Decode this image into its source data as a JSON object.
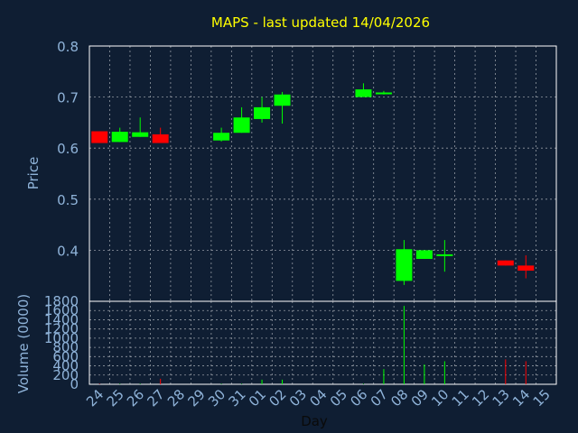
{
  "chart_data": [
    {
      "type": "candlestick",
      "title": "MAPS - last updated 14/04/2026",
      "ylabel": "Price",
      "ylim": [
        0.3,
        0.8
      ],
      "yticks": [
        "0.8",
        "0.7",
        "0.6",
        "0.5",
        "0.4"
      ],
      "grid": true,
      "categories": [
        "24",
        "25",
        "26",
        "27",
        "28",
        "29",
        "30",
        "31",
        "01",
        "02",
        "03",
        "04",
        "05",
        "06",
        "07",
        "08",
        "09",
        "10",
        "11",
        "12",
        "13",
        "14",
        "15"
      ],
      "candles": [
        {
          "x": "24",
          "open": 0.61,
          "close": 0.633,
          "high": 0.633,
          "low": 0.61,
          "color": "#ff0000"
        },
        {
          "x": "25",
          "open": 0.612,
          "close": 0.632,
          "high": 0.64,
          "low": 0.612,
          "color": "#00ff00"
        },
        {
          "x": "26",
          "open": 0.622,
          "close": 0.631,
          "high": 0.66,
          "low": 0.622,
          "color": "#00ff00"
        },
        {
          "x": "27",
          "open": 0.627,
          "close": 0.61,
          "high": 0.64,
          "low": 0.61,
          "color": "#ff0000"
        },
        {
          "x": "30",
          "open": 0.615,
          "close": 0.63,
          "high": 0.64,
          "low": 0.613,
          "color": "#00ff00"
        },
        {
          "x": "31",
          "open": 0.63,
          "close": 0.66,
          "high": 0.68,
          "low": 0.63,
          "color": "#00ff00"
        },
        {
          "x": "01",
          "open": 0.657,
          "close": 0.68,
          "high": 0.7,
          "low": 0.65,
          "color": "#00ff00"
        },
        {
          "x": "02",
          "open": 0.683,
          "close": 0.705,
          "high": 0.71,
          "low": 0.648,
          "color": "#00ff00"
        },
        {
          "x": "06",
          "open": 0.7,
          "close": 0.715,
          "high": 0.727,
          "low": 0.7,
          "color": "#00ff00"
        },
        {
          "x": "07",
          "open": 0.707,
          "close": 0.709,
          "high": 0.712,
          "low": 0.705,
          "color": "#00ff00"
        },
        {
          "x": "08",
          "open": 0.34,
          "close": 0.402,
          "high": 0.42,
          "low": 0.332,
          "color": "#00ff00"
        },
        {
          "x": "09",
          "open": 0.383,
          "close": 0.4,
          "high": 0.4,
          "low": 0.383,
          "color": "#00ff00"
        },
        {
          "x": "10",
          "open": 0.39,
          "close": 0.392,
          "high": 0.42,
          "low": 0.358,
          "color": "#00ff00"
        },
        {
          "x": "13",
          "open": 0.38,
          "close": 0.37,
          "high": 0.38,
          "low": 0.37,
          "color": "#ff0000"
        },
        {
          "x": "14",
          "open": 0.37,
          "close": 0.36,
          "high": 0.39,
          "low": 0.345,
          "color": "#ff0000"
        }
      ]
    },
    {
      "type": "bar",
      "ylabel": "Volume (0000)",
      "xlabel": "Day",
      "ylim": [
        0,
        1800
      ],
      "yticks": [
        "1800",
        "1600",
        "1400",
        "1200",
        "1000",
        "800",
        "600",
        "400",
        "200",
        "0"
      ],
      "grid": true,
      "categories": [
        "24",
        "25",
        "26",
        "27",
        "28",
        "29",
        "30",
        "31",
        "01",
        "02",
        "03",
        "04",
        "05",
        "06",
        "07",
        "08",
        "09",
        "10",
        "11",
        "12",
        "13",
        "14",
        "15"
      ],
      "bars": [
        {
          "x": "24",
          "value": 10,
          "color": "#ff0000"
        },
        {
          "x": "25",
          "value": 10,
          "color": "#00ff00"
        },
        {
          "x": "26",
          "value": 10,
          "color": "#00ff00"
        },
        {
          "x": "27",
          "value": 120,
          "color": "#ff0000"
        },
        {
          "x": "30",
          "value": 10,
          "color": "#00ff00"
        },
        {
          "x": "31",
          "value": 10,
          "color": "#00ff00"
        },
        {
          "x": "01",
          "value": 100,
          "color": "#00ff00"
        },
        {
          "x": "02",
          "value": 100,
          "color": "#00ff00"
        },
        {
          "x": "06",
          "value": 10,
          "color": "#00ff00"
        },
        {
          "x": "07",
          "value": 330,
          "color": "#00ff00"
        },
        {
          "x": "08",
          "value": 1700,
          "color": "#00ff00"
        },
        {
          "x": "09",
          "value": 430,
          "color": "#00ff00"
        },
        {
          "x": "10",
          "value": 500,
          "color": "#00ff00"
        },
        {
          "x": "13",
          "value": 540,
          "color": "#ff0000"
        },
        {
          "x": "14",
          "value": 500,
          "color": "#ff0000"
        }
      ]
    }
  ]
}
